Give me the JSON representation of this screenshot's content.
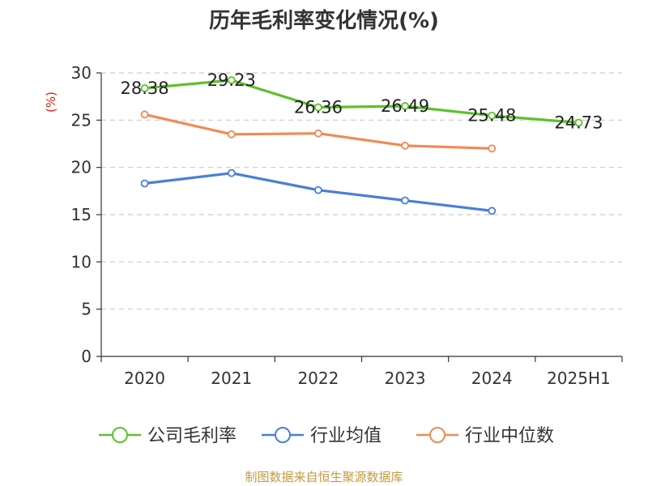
{
  "chart_data": {
    "type": "line",
    "title": "历年毛利率变化情况(%)",
    "ylabel": "(%)",
    "xlabel": "",
    "categories": [
      "2020",
      "2021",
      "2022",
      "2023",
      "2024",
      "2025H1"
    ],
    "ylim": [
      0,
      30
    ],
    "yticks": [
      0,
      5,
      10,
      15,
      20,
      25,
      30
    ],
    "grid": true,
    "legend_position": "bottom",
    "series": [
      {
        "name": "公司毛利率",
        "color": "#5cc22b",
        "values": [
          28.38,
          29.23,
          26.36,
          26.49,
          25.48,
          24.73
        ],
        "labels": [
          "28.38",
          "29.23",
          "26.36",
          "26.49",
          "25.48",
          "24.73"
        ]
      },
      {
        "name": "行业均值",
        "color": "#4a7fd6",
        "values": [
          18.3,
          19.4,
          17.6,
          16.5,
          15.4,
          null
        ]
      },
      {
        "name": "行业中位数",
        "color": "#f08a56",
        "values": [
          25.6,
          23.5,
          23.6,
          22.3,
          22.0,
          null
        ]
      }
    ],
    "unit_color": "#d81e06",
    "source": "制图数据来自恒生聚源数据库",
    "source_color": "#c49a3c"
  }
}
